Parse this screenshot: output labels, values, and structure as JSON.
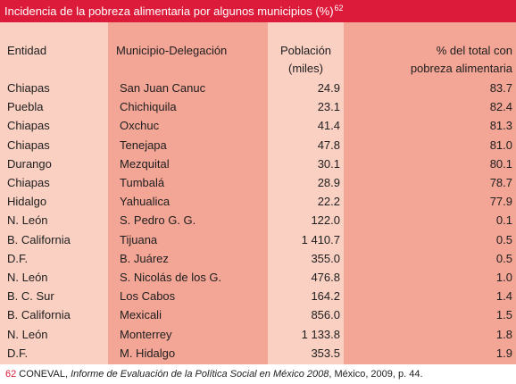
{
  "title": "Incidencia de la pobreza alimentaria por algunos municipios (%)",
  "title_note": "62",
  "headers": {
    "entidad": "Entidad",
    "municipio": "Municipio-Delegación",
    "poblacion_line1": "Población",
    "poblacion_line2": "(miles)",
    "pct_line1": "% del total con",
    "pct_line2": "pobreza alimentaria"
  },
  "rows": [
    {
      "entidad": "Chiapas",
      "municipio": "San Juan Canuc",
      "poblacion": "24.9",
      "pct": "83.7"
    },
    {
      "entidad": "Puebla",
      "municipio": "Chichiquila",
      "poblacion": "23.1",
      "pct": "82.4"
    },
    {
      "entidad": "Chiapas",
      "municipio": "Oxchuc",
      "poblacion": "41.4",
      "pct": "81.3"
    },
    {
      "entidad": "Chiapas",
      "municipio": "Tenejapa",
      "poblacion": "47.8",
      "pct": "81.0"
    },
    {
      "entidad": "Durango",
      "municipio": "Mezquital",
      "poblacion": "30.1",
      "pct": "80.1"
    },
    {
      "entidad": "Chiapas",
      "municipio": "Tumbalá",
      "poblacion": "28.9",
      "pct": "78.7"
    },
    {
      "entidad": "Hidalgo",
      "municipio": "Yahualica",
      "poblacion": "22.2",
      "pct": "77.9"
    },
    {
      "entidad": "N. León",
      "municipio": "S. Pedro G. G.",
      "poblacion": "122.0",
      "pct": "0.1"
    },
    {
      "entidad": "B. California",
      "municipio": "Tijuana",
      "poblacion": "1 410.7",
      "pct": "0.5"
    },
    {
      "entidad": "D.F.",
      "municipio": "B. Juárez",
      "poblacion": "355.0",
      "pct": "0.5"
    },
    {
      "entidad": "N. León",
      "municipio": "S. Nicolás de los G.",
      "poblacion": "476.8",
      "pct": "1.0"
    },
    {
      "entidad": "B. C. Sur",
      "municipio": "Los Cabos",
      "poblacion": "164.2",
      "pct": "1.4"
    },
    {
      "entidad": "B. California",
      "municipio": "Mexicali",
      "poblacion": "856.0",
      "pct": "1.5"
    },
    {
      "entidad": "N. León",
      "municipio": "Monterrey",
      "poblacion": "1 133.8",
      "pct": "1.8"
    },
    {
      "entidad": "D.F.",
      "municipio": "M. Hidalgo",
      "poblacion": "353.5",
      "pct": "1.9"
    }
  ],
  "footnote": {
    "number": "62",
    "prefix": "CONEVAL, ",
    "title": "Informe de Evaluación de la Política Social en México 2008",
    "suffix": ", México, 2009, p. 44."
  },
  "colors": {
    "title_bar": "#dc1a39",
    "column_light": "#f9d0c2",
    "column_dark": "#f3a596"
  }
}
